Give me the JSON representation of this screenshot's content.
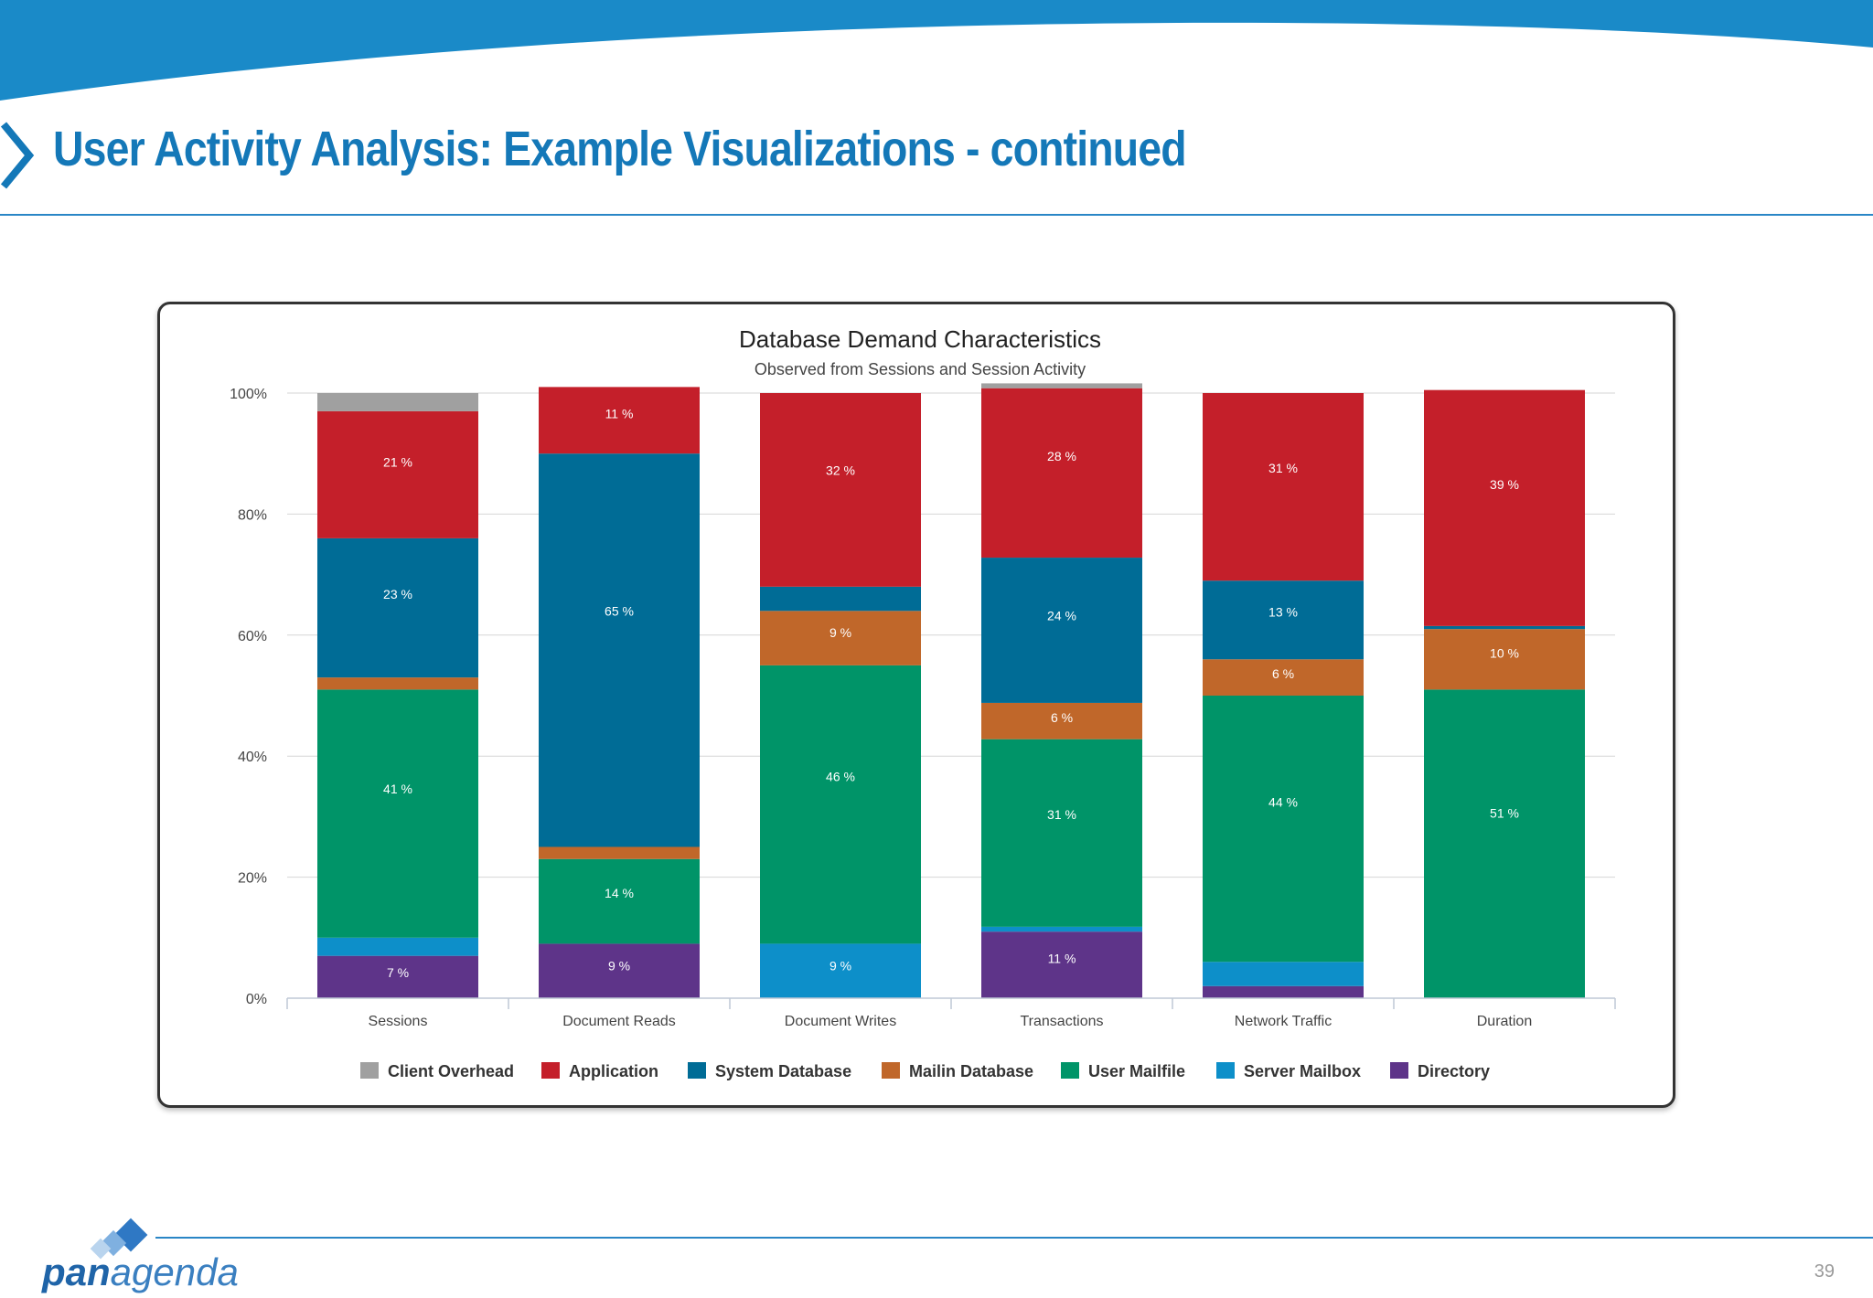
{
  "slide": {
    "title": "User Activity Analysis: Example Visualizations - continued",
    "page_number": "39",
    "logo_text_bold": "pan",
    "logo_text_thin": "agenda"
  },
  "colors": {
    "brand_blue": "#1478b8",
    "Client Overhead": "#a0a0a0",
    "Application": "#c41f2a",
    "System Database": "#006c96",
    "Mailin Database": "#c0672a",
    "User Mailfile": "#009468",
    "Server Mailbox": "#0d8fc9",
    "Directory": "#5e3489"
  },
  "chart_data": {
    "type": "bar",
    "stacked": true,
    "percent_stacked": true,
    "title": "Database Demand Characteristics",
    "subtitle": "Observed from Sessions and Session Activity",
    "categories": [
      "Sessions",
      "Document Reads",
      "Document Writes",
      "Transactions",
      "Network Traffic",
      "Duration"
    ],
    "yticks": [
      "0%",
      "20%",
      "40%",
      "60%",
      "80%",
      "100%"
    ],
    "ylim": [
      0,
      100
    ],
    "grid": true,
    "legend_position": "bottom",
    "series": [
      {
        "name": "Directory",
        "values": [
          7,
          9,
          0,
          11,
          2,
          0
        ]
      },
      {
        "name": "Server Mailbox",
        "values": [
          3,
          0,
          9,
          0.8,
          4,
          0
        ]
      },
      {
        "name": "User Mailfile",
        "values": [
          41,
          14,
          46,
          31,
          44,
          51
        ]
      },
      {
        "name": "Mailin Database",
        "values": [
          2,
          2,
          9,
          6,
          6,
          10
        ]
      },
      {
        "name": "System Database",
        "values": [
          23,
          65,
          4,
          24,
          13,
          0.5
        ]
      },
      {
        "name": "Application",
        "values": [
          21,
          11,
          32,
          28,
          31,
          39
        ]
      },
      {
        "name": "Client Overhead",
        "values": [
          3,
          0,
          0,
          0.8,
          0,
          0
        ]
      }
    ],
    "data_labels": [
      {
        "series": "Directory",
        "category": "Sessions",
        "text": "7 %"
      },
      {
        "series": "Directory",
        "category": "Document Reads",
        "text": "9 %"
      },
      {
        "series": "Directory",
        "category": "Transactions",
        "text": "11 %"
      },
      {
        "series": "Server Mailbox",
        "category": "Document Writes",
        "text": "9 %"
      },
      {
        "series": "User Mailfile",
        "category": "Sessions",
        "text": "41 %"
      },
      {
        "series": "User Mailfile",
        "category": "Document Reads",
        "text": "14 %"
      },
      {
        "series": "User Mailfile",
        "category": "Document Writes",
        "text": "46 %"
      },
      {
        "series": "User Mailfile",
        "category": "Transactions",
        "text": "31 %"
      },
      {
        "series": "User Mailfile",
        "category": "Network Traffic",
        "text": "44 %"
      },
      {
        "series": "User Mailfile",
        "category": "Duration",
        "text": "51 %"
      },
      {
        "series": "Mailin Database",
        "category": "Document Writes",
        "text": "9 %"
      },
      {
        "series": "Mailin Database",
        "category": "Transactions",
        "text": "6 %"
      },
      {
        "series": "Mailin Database",
        "category": "Network Traffic",
        "text": "6 %"
      },
      {
        "series": "Mailin Database",
        "category": "Duration",
        "text": "10 %"
      },
      {
        "series": "System Database",
        "category": "Sessions",
        "text": "23 %"
      },
      {
        "series": "System Database",
        "category": "Document Reads",
        "text": "65 %"
      },
      {
        "series": "System Database",
        "category": "Transactions",
        "text": "24 %"
      },
      {
        "series": "System Database",
        "category": "Network Traffic",
        "text": "13 %"
      },
      {
        "series": "Application",
        "category": "Sessions",
        "text": "21 %"
      },
      {
        "series": "Application",
        "category": "Document Reads",
        "text": "11 %"
      },
      {
        "series": "Application",
        "category": "Document Writes",
        "text": "32 %"
      },
      {
        "series": "Application",
        "category": "Transactions",
        "text": "28 %"
      },
      {
        "series": "Application",
        "category": "Network Traffic",
        "text": "31 %"
      },
      {
        "series": "Application",
        "category": "Duration",
        "text": "39 %"
      }
    ],
    "legend": [
      "Client Overhead",
      "Application",
      "System Database",
      "Mailin Database",
      "User Mailfile",
      "Server Mailbox",
      "Directory"
    ]
  }
}
